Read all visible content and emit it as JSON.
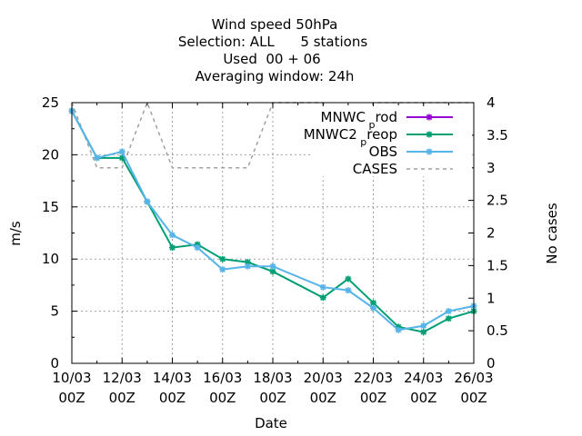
{
  "chart_data": {
    "type": "line",
    "title_lines": [
      "Wind speed 50hPa",
      "Selection: ALL      5 stations",
      "Used  00 + 06",
      "Averaging window: 24h"
    ],
    "xlabel": "Date",
    "ylabel": "m/s",
    "y2label": "No cases",
    "ylim": [
      0,
      25
    ],
    "y2lim": [
      0,
      4
    ],
    "yticks": [
      "0",
      "5",
      "10",
      "15",
      "20",
      "25"
    ],
    "y2ticks": [
      "0",
      "0.5",
      "1",
      "1.5",
      "2",
      "2.5",
      "3",
      "3.5",
      "4"
    ],
    "x_range": [
      "2023-03-10 00Z",
      "2023-03-26 00Z"
    ],
    "xticks": [
      {
        "top": "10/03",
        "bottom": "00Z"
      },
      {
        "top": "12/03",
        "bottom": "00Z"
      },
      {
        "top": "14/03",
        "bottom": "00Z"
      },
      {
        "top": "16/03",
        "bottom": "00Z"
      },
      {
        "top": "18/03",
        "bottom": "00Z"
      },
      {
        "top": "20/03",
        "bottom": "00Z"
      },
      {
        "top": "22/03",
        "bottom": "00Z"
      },
      {
        "top": "24/03",
        "bottom": "00Z"
      },
      {
        "top": "26/03",
        "bottom": "00Z"
      }
    ],
    "grid": true,
    "legend_position": "top-right",
    "series": [
      {
        "name": "MNWC_prod",
        "legend_text": "MNWC",
        "legend_sub": "p",
        "legend_tail": "rod",
        "color": "#9400d3",
        "marker": "star",
        "axis": "left",
        "x": [],
        "values": []
      },
      {
        "name": "MNWC2_preop",
        "legend_text": "MNWC2",
        "legend_sub": "p",
        "legend_tail": "reop",
        "color": "#009e73",
        "marker": "star",
        "axis": "left",
        "x": [
          "10/03",
          "11/03",
          "12/03",
          "13/03",
          "14/03",
          "15/03",
          "16/03",
          "17/03",
          "18/03",
          "20/03",
          "21/03",
          "22/03",
          "23/03",
          "24/03",
          "25/03",
          "26/03"
        ],
        "values": [
          24.2,
          19.7,
          19.7,
          15.5,
          11.1,
          11.4,
          10.0,
          9.7,
          8.8,
          6.3,
          8.1,
          5.8,
          3.5,
          3.0,
          4.3,
          5.0
        ]
      },
      {
        "name": "OBS",
        "legend_text": "OBS",
        "color": "#56b4e9",
        "marker": "star",
        "axis": "left",
        "x": [
          "10/03",
          "11/03",
          "12/03",
          "13/03",
          "14/03",
          "15/03",
          "16/03",
          "17/03",
          "18/03",
          "20/03",
          "21/03",
          "22/03",
          "23/03",
          "24/03",
          "25/03",
          "26/03"
        ],
        "values": [
          24.2,
          19.7,
          20.3,
          15.5,
          12.3,
          11.1,
          9.0,
          9.3,
          9.3,
          7.3,
          7.0,
          5.3,
          3.2,
          3.6,
          5.0,
          5.5
        ]
      },
      {
        "name": "CASES",
        "legend_text": "CASES",
        "color": "#a0a0a0",
        "dashed": true,
        "axis": "right",
        "x": [
          "10/03",
          "11/03",
          "12/03",
          "13/03",
          "14/03",
          "15/03",
          "16/03",
          "17/03",
          "18/03",
          "19/03",
          "20/03",
          "21/03",
          "22/03",
          "23/03",
          "24/03",
          "25/03",
          "26/03"
        ],
        "values": [
          4,
          3,
          3,
          4,
          3,
          3,
          3,
          3,
          4,
          4,
          4,
          3,
          4,
          4,
          4,
          4,
          4
        ]
      }
    ]
  }
}
